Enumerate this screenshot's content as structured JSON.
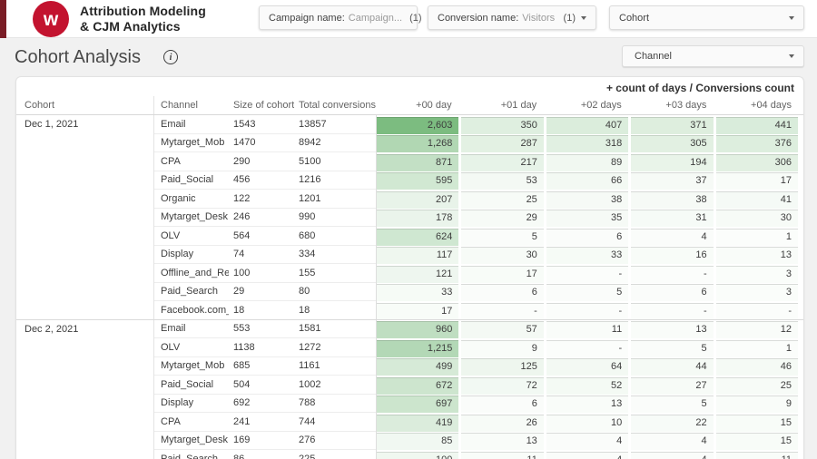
{
  "brand": {
    "logo_letter": "w",
    "logo_color": "#c3132f",
    "strip_color": "#7a1d26",
    "title_line1": "Attribution Modeling",
    "title_line2": "& CJM Analytics"
  },
  "filters": {
    "campaign": {
      "label": "Campaign name:",
      "value": "Campaign...",
      "count": "(1)"
    },
    "conversion": {
      "label": "Conversion name:",
      "value": "Visitors",
      "count": "(1)"
    },
    "cohort": {
      "label": "Cohort"
    },
    "channel": {
      "label": "Channel"
    }
  },
  "page": {
    "title": "Cohort Analysis",
    "info_glyph": "i"
  },
  "table_caption": "+ count of days / Conversions count",
  "cohort_table": {
    "columns": [
      "Cohort",
      "Channel",
      "Size of cohort",
      "Total conversions",
      "+00 day",
      "+01 day",
      "+02 days",
      "+03 days",
      "+04 days"
    ],
    "heat": {
      "max": 2603,
      "gamma": 0.75,
      "low_rgb": [
        251,
        253,
        251
      ],
      "high_rgb": [
        124,
        188,
        128
      ]
    },
    "groups": [
      {
        "cohort": "Dec 1, 2021",
        "rows": [
          {
            "channel": "Email",
            "size": "1543",
            "total": "13857",
            "days": [
              "2,603",
              "350",
              "407",
              "371",
              "441"
            ]
          },
          {
            "channel": "Mytarget_Mob",
            "size": "1470",
            "total": "8942",
            "days": [
              "1,268",
              "287",
              "318",
              "305",
              "376"
            ]
          },
          {
            "channel": "CPA",
            "size": "290",
            "total": "5100",
            "days": [
              "871",
              "217",
              "89",
              "194",
              "306"
            ]
          },
          {
            "channel": "Paid_Social",
            "size": "456",
            "total": "1216",
            "days": [
              "595",
              "53",
              "66",
              "37",
              "17"
            ]
          },
          {
            "channel": "Organic",
            "size": "122",
            "total": "1201",
            "days": [
              "207",
              "25",
              "38",
              "38",
              "41"
            ]
          },
          {
            "channel": "Mytarget_Desk",
            "size": "246",
            "total": "990",
            "days": [
              "178",
              "29",
              "35",
              "31",
              "30"
            ]
          },
          {
            "channel": "OLV",
            "size": "564",
            "total": "680",
            "days": [
              "624",
              "5",
              "6",
              "4",
              "1"
            ]
          },
          {
            "channel": "Display",
            "size": "74",
            "total": "334",
            "days": [
              "117",
              "30",
              "33",
              "16",
              "13"
            ]
          },
          {
            "channel": "Offline_and_Ret...",
            "size": "100",
            "total": "155",
            "days": [
              "121",
              "17",
              "-",
              "-",
              "3"
            ]
          },
          {
            "channel": "Paid_Search",
            "size": "29",
            "total": "80",
            "days": [
              "33",
              "6",
              "5",
              "6",
              "3"
            ]
          },
          {
            "channel": "Facebook.com_...",
            "size": "18",
            "total": "18",
            "days": [
              "17",
              "-",
              "-",
              "-",
              "-"
            ]
          }
        ]
      },
      {
        "cohort": "Dec 2, 2021",
        "rows": [
          {
            "channel": "Email",
            "size": "553",
            "total": "1581",
            "days": [
              "960",
              "57",
              "11",
              "13",
              "12"
            ]
          },
          {
            "channel": "OLV",
            "size": "1138",
            "total": "1272",
            "days": [
              "1,215",
              "9",
              "-",
              "5",
              "1"
            ]
          },
          {
            "channel": "Mytarget_Mob",
            "size": "685",
            "total": "1161",
            "days": [
              "499",
              "125",
              "64",
              "44",
              "46"
            ]
          },
          {
            "channel": "Paid_Social",
            "size": "504",
            "total": "1002",
            "days": [
              "672",
              "72",
              "52",
              "27",
              "25"
            ]
          },
          {
            "channel": "Display",
            "size": "692",
            "total": "788",
            "days": [
              "697",
              "6",
              "13",
              "5",
              "9"
            ]
          },
          {
            "channel": "CPA",
            "size": "241",
            "total": "744",
            "days": [
              "419",
              "26",
              "10",
              "22",
              "15"
            ]
          },
          {
            "channel": "Mytarget_Desk",
            "size": "169",
            "total": "276",
            "days": [
              "85",
              "13",
              "4",
              "4",
              "15"
            ]
          },
          {
            "channel": "Paid_Search",
            "size": "86",
            "total": "225",
            "days": [
              "100",
              "11",
              "4",
              "4",
              "11"
            ]
          }
        ]
      }
    ]
  }
}
